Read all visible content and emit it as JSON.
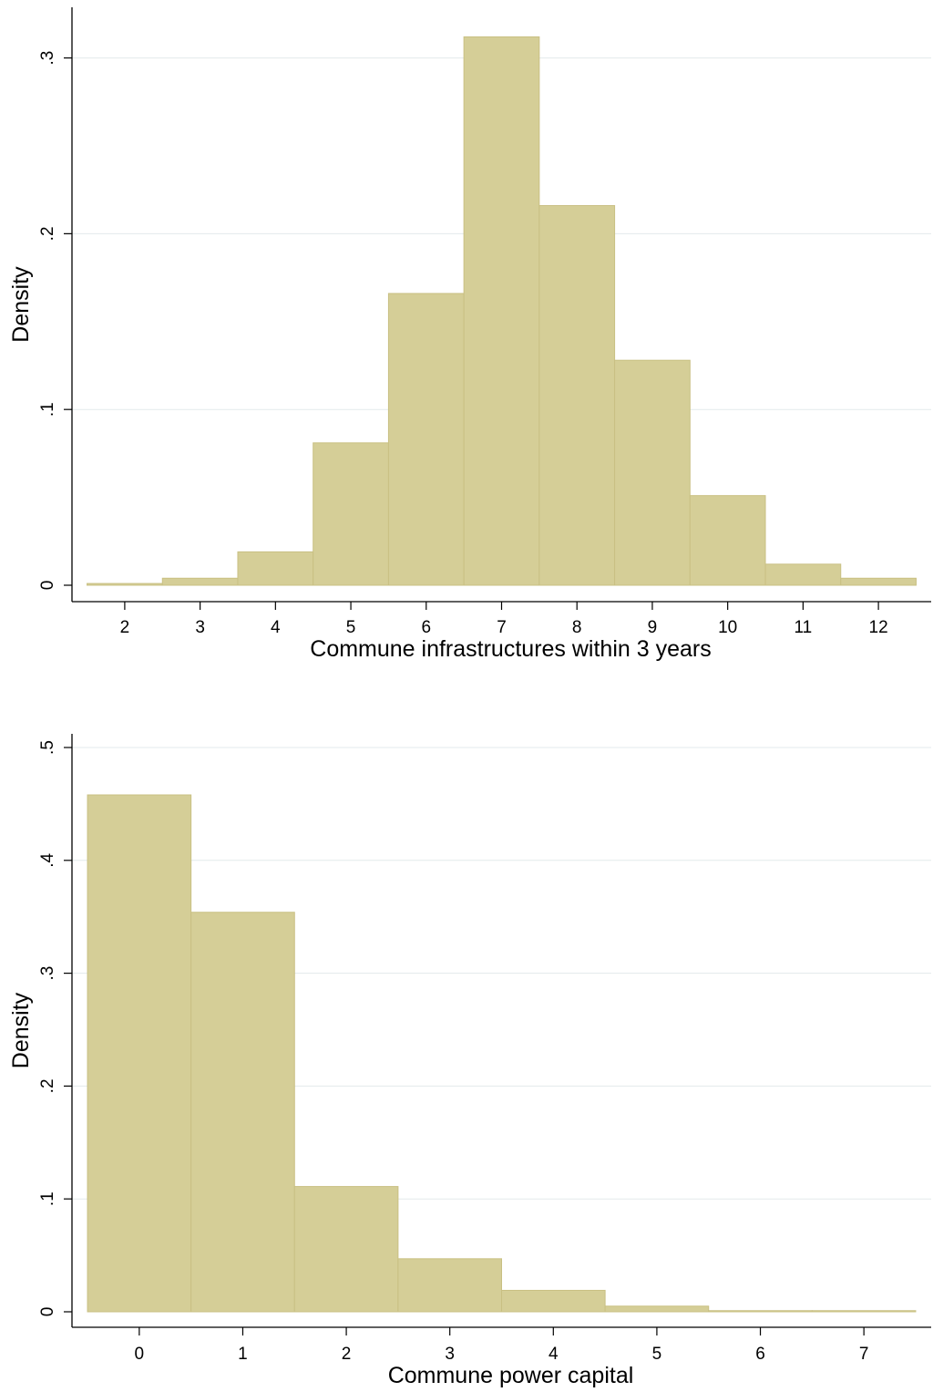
{
  "chart_data": [
    {
      "type": "bar",
      "subtype": "histogram",
      "xlabel": "Commune infrastructures within 3 years",
      "ylabel": "Density",
      "bin_width": 1,
      "x": [
        2,
        3,
        4,
        5,
        6,
        7,
        8,
        9,
        10,
        11,
        12
      ],
      "values": [
        0.001,
        0.004,
        0.019,
        0.081,
        0.166,
        0.312,
        0.216,
        0.128,
        0.051,
        0.012,
        0.004
      ],
      "xlim": [
        1.3,
        12.7
      ],
      "ylim": [
        0,
        0.32
      ],
      "xticks": [
        2,
        3,
        4,
        5,
        6,
        7,
        8,
        9,
        10,
        11,
        12
      ],
      "yticks": [
        0,
        0.1,
        0.2,
        0.3
      ],
      "ytick_labels": [
        "0",
        ".1",
        ".2",
        ".3"
      ],
      "grid": true,
      "bar_color": "#d5ce97",
      "bar_edge_color": "#c9c083"
    },
    {
      "type": "bar",
      "subtype": "histogram",
      "xlabel": "Commune power capital",
      "ylabel": "Density",
      "bin_width": 1,
      "x": [
        0,
        1,
        2,
        3,
        4,
        5,
        6,
        7
      ],
      "values": [
        0.458,
        0.354,
        0.111,
        0.047,
        0.019,
        0.005,
        0.001,
        0.001
      ],
      "xlim": [
        -0.65,
        7.65
      ],
      "ylim": [
        0,
        0.5
      ],
      "xticks": [
        0,
        1,
        2,
        3,
        4,
        5,
        6,
        7
      ],
      "yticks": [
        0,
        0.1,
        0.2,
        0.3,
        0.4,
        0.5
      ],
      "ytick_labels": [
        "0",
        ".1",
        ".2",
        ".3",
        ".4",
        ".5"
      ],
      "grid": true,
      "bar_color": "#d5ce97",
      "bar_edge_color": "#c9c083"
    }
  ]
}
